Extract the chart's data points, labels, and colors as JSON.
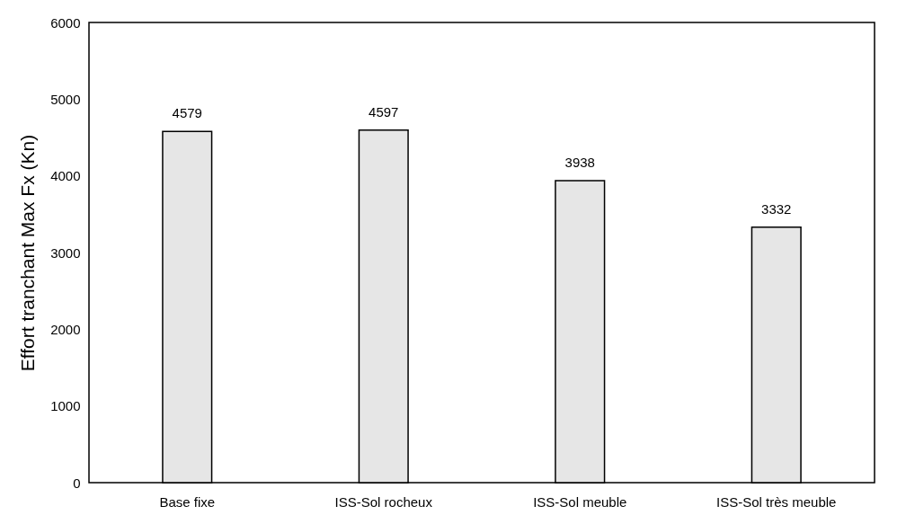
{
  "chart_data": {
    "type": "bar",
    "ylabel": "Effort tranchant Max Fx (Kn)",
    "categories": [
      "Base fixe",
      "ISS-Sol rocheux",
      "ISS-Sol meuble",
      "ISS-Sol très meuble"
    ],
    "values": [
      4579,
      4597,
      3938,
      3332
    ],
    "color": "#e6e6e6",
    "ylim": [
      0,
      6000
    ],
    "yticks": [
      0,
      1000,
      2000,
      3000,
      4000,
      5000,
      6000
    ],
    "grid": false,
    "data_labels": true
  }
}
